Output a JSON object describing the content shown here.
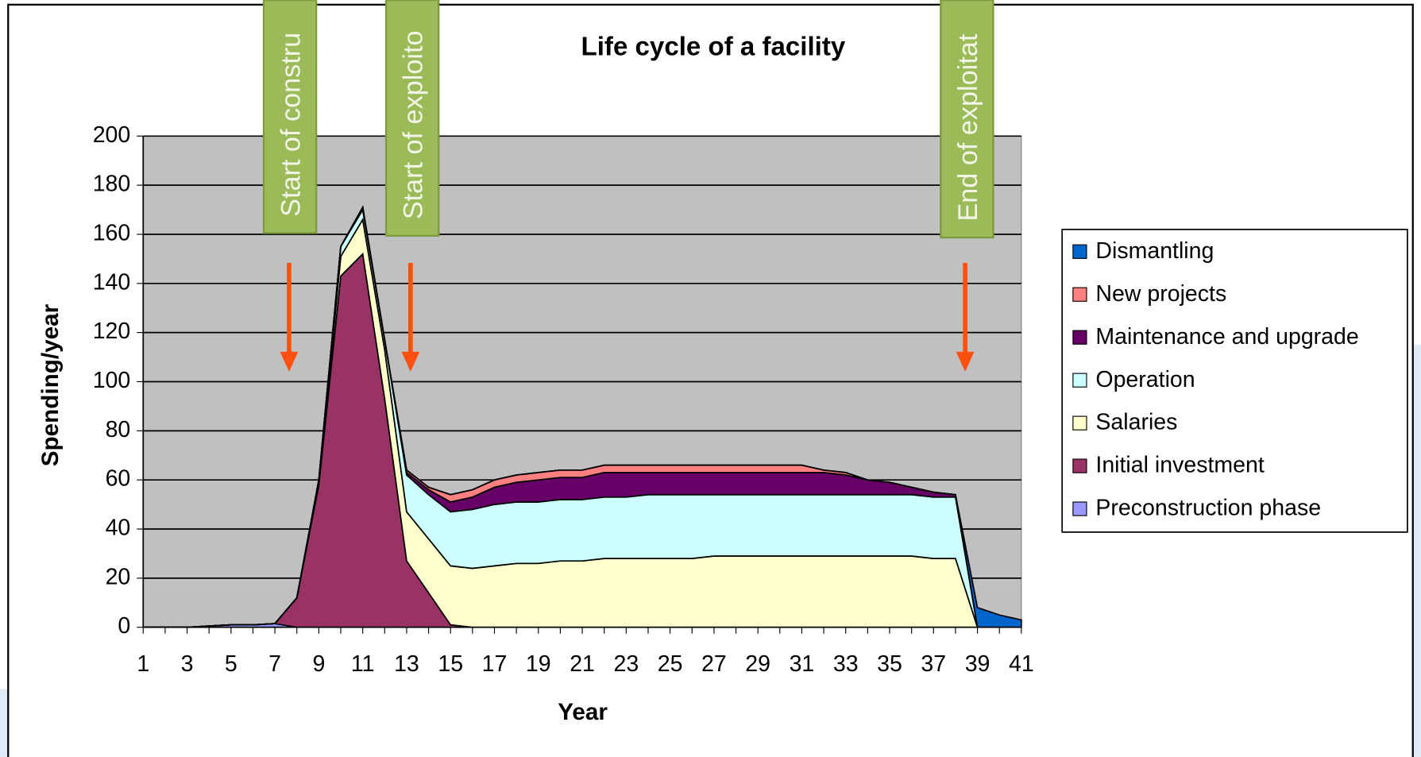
{
  "chart_data": {
    "type": "stacked_area",
    "title": "Life cycle of a facility",
    "x_label": "Year",
    "y_label": "Spending/year",
    "categories": [
      1,
      null,
      3,
      null,
      5,
      null,
      7,
      null,
      9,
      null,
      11,
      null,
      13,
      null,
      15,
      null,
      17,
      null,
      19,
      null,
      21,
      null,
      23,
      null,
      25,
      null,
      27,
      null,
      29,
      null,
      31,
      null,
      33,
      null,
      35,
      null,
      37,
      null,
      39,
      null,
      41
    ],
    "ylim": [
      0,
      200
    ],
    "yticks": [
      0,
      20,
      40,
      60,
      80,
      100,
      120,
      140,
      160,
      180,
      200
    ],
    "grid": true,
    "legend": "right",
    "annotations": [
      {
        "text": "Start of constru"
      },
      {
        "text": "Start of exploito"
      },
      {
        "text": "End of exploitat"
      }
    ],
    "series": [
      {
        "name": "Preconstruction phase",
        "color": "#9999ff",
        "values": [
          0,
          0,
          0,
          0.5,
          1,
          1,
          1.5,
          0,
          0,
          0,
          0,
          0,
          0,
          0,
          0,
          0,
          0,
          0,
          0,
          0,
          0,
          0,
          0,
          0,
          0,
          0,
          0,
          0,
          0,
          0,
          0,
          0,
          0,
          0,
          0,
          0,
          0,
          0,
          0,
          0,
          0
        ]
      },
      {
        "name": "Initial investment",
        "color": "#993366",
        "values": [
          0,
          0,
          0,
          0,
          0,
          0,
          0,
          12,
          58,
          143,
          152,
          93,
          27,
          14,
          1,
          0,
          0,
          0,
          0,
          0,
          0,
          0,
          0,
          0,
          0,
          0,
          0,
          0,
          0,
          0,
          0,
          0,
          0,
          0,
          0,
          0,
          0,
          0,
          0,
          0,
          0
        ]
      },
      {
        "name": "Salaries",
        "color": "#ffffcc",
        "values": [
          0,
          0,
          0,
          0,
          0,
          0,
          0,
          0,
          1,
          8,
          14,
          20,
          20,
          22,
          24,
          24,
          25,
          26,
          26,
          27,
          27,
          28,
          28,
          28,
          28,
          28,
          29,
          29,
          29,
          29,
          29,
          29,
          29,
          29,
          29,
          29,
          28,
          28,
          0,
          0,
          0
        ]
      },
      {
        "name": "Operation",
        "color": "#ccffff",
        "values": [
          0,
          0,
          0,
          0,
          0,
          0,
          0,
          0,
          1,
          4,
          4,
          4,
          15,
          18,
          22,
          24,
          25,
          25,
          25,
          25,
          25,
          25,
          25,
          26,
          26,
          26,
          25,
          25,
          25,
          25,
          25,
          25,
          25,
          25,
          25,
          25,
          25,
          25,
          0,
          0,
          0
        ]
      },
      {
        "name": "Maintenance and upgrade",
        "color": "#660066",
        "values": [
          0,
          0,
          0,
          0,
          0,
          0,
          0,
          0,
          0,
          0,
          1,
          0,
          1,
          2,
          4,
          5,
          7,
          8,
          9,
          9,
          9,
          10,
          10,
          9,
          9,
          9,
          9,
          9,
          9,
          9,
          9,
          9,
          8,
          6,
          5,
          3,
          2,
          1,
          0,
          0,
          0
        ]
      },
      {
        "name": "New projects",
        "color": "#ff8080",
        "values": [
          0,
          0,
          0,
          0,
          0,
          0,
          0,
          0,
          0,
          0,
          0,
          0,
          1,
          1,
          3,
          3,
          3,
          3,
          3,
          3,
          3,
          3,
          3,
          3,
          3,
          3,
          3,
          3,
          3,
          3,
          3,
          1,
          1,
          0,
          0,
          0,
          0,
          0,
          0,
          0,
          0
        ]
      },
      {
        "name": "Dismantling",
        "color": "#0066cc",
        "values": [
          0,
          0,
          0,
          0,
          0,
          0,
          0,
          0,
          0,
          0,
          0,
          0,
          0,
          0,
          0,
          0,
          0,
          0,
          0,
          0,
          0,
          0,
          0,
          0,
          0,
          0,
          0,
          0,
          0,
          0,
          0,
          0,
          0,
          0,
          0,
          0,
          0,
          0,
          8,
          5,
          3
        ]
      }
    ]
  }
}
